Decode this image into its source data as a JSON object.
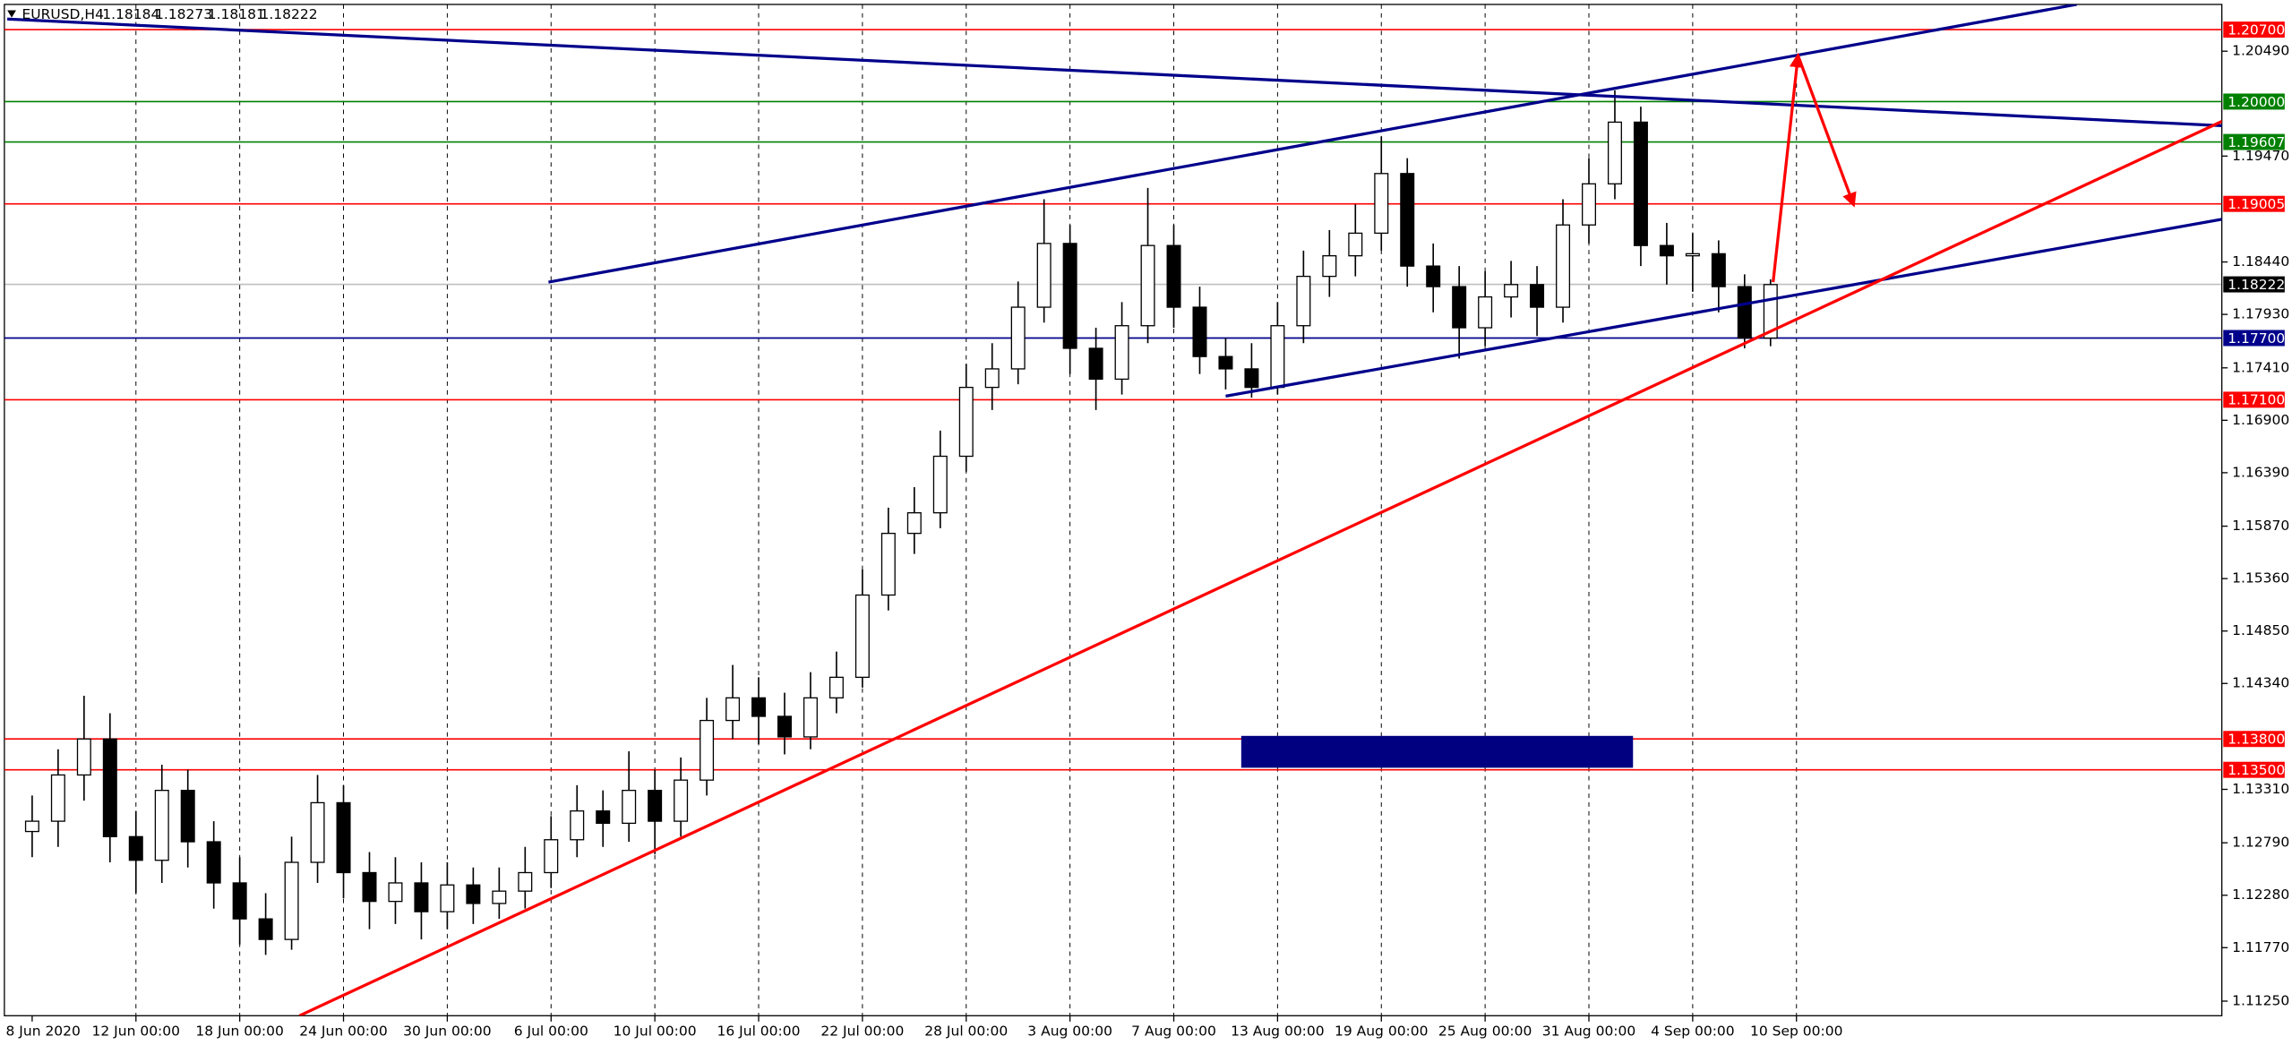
{
  "chart_data": {
    "type": "candlestick",
    "title": "EURUSD,H4",
    "quote": [
      1.18184,
      1.18273,
      1.18181,
      1.18222
    ],
    "open": [
      1.129,
      1.13,
      1.1345,
      1.138,
      1.1285,
      1.1262,
      1.133,
      1.128,
      1.124,
      1.1205,
      1.1185,
      1.126,
      1.1318,
      1.125,
      1.1222,
      1.124,
      1.1212,
      1.1238,
      1.122,
      1.1232,
      1.125,
      1.1282,
      1.131,
      1.1298,
      1.133,
      1.13,
      1.134,
      1.1398,
      1.142,
      1.1402,
      1.1382,
      1.142,
      1.144,
      1.152,
      1.158,
      1.16,
      1.1655,
      1.1722,
      1.174,
      1.18,
      1.1862,
      1.176,
      1.173,
      1.1782,
      1.186,
      1.18,
      1.1752,
      1.174,
      1.1722,
      1.1782,
      1.183,
      1.185,
      1.1872,
      1.193,
      1.184,
      1.182,
      1.178,
      1.181,
      1.1822,
      1.18,
      1.188,
      1.192,
      1.198,
      1.186,
      1.185,
      1.1852,
      1.182,
      1.177
    ],
    "high": [
      1.1325,
      1.137,
      1.1422,
      1.1405,
      1.131,
      1.1355,
      1.135,
      1.13,
      1.1265,
      1.123,
      1.1285,
      1.1345,
      1.1335,
      1.127,
      1.1265,
      1.126,
      1.126,
      1.1255,
      1.1255,
      1.1275,
      1.1305,
      1.1335,
      1.133,
      1.1368,
      1.135,
      1.1362,
      1.142,
      1.1452,
      1.144,
      1.1425,
      1.1445,
      1.1465,
      1.1545,
      1.1605,
      1.1625,
      1.168,
      1.1745,
      1.1765,
      1.1825,
      1.1905,
      1.188,
      1.178,
      1.1805,
      1.1916,
      1.188,
      1.182,
      1.177,
      1.1765,
      1.1805,
      1.1855,
      1.1875,
      1.19,
      1.1966,
      1.1945,
      1.1862,
      1.184,
      1.1835,
      1.1845,
      1.184,
      1.1905,
      1.1945,
      1.2011,
      1.1995,
      1.1882,
      1.1872,
      1.1865,
      1.1832,
      1.1827
    ],
    "low": [
      1.1265,
      1.1275,
      1.132,
      1.126,
      1.123,
      1.124,
      1.1255,
      1.1215,
      1.118,
      1.117,
      1.1175,
      1.124,
      1.1225,
      1.1195,
      1.12,
      1.1185,
      1.1195,
      1.12,
      1.1205,
      1.1215,
      1.1235,
      1.1265,
      1.1275,
      1.128,
      1.1268,
      1.1285,
      1.1325,
      1.138,
      1.1375,
      1.1365,
      1.137,
      1.1405,
      1.143,
      1.1505,
      1.156,
      1.1585,
      1.164,
      1.17,
      1.1725,
      1.1785,
      1.1735,
      1.17,
      1.1715,
      1.1765,
      1.178,
      1.1735,
      1.172,
      1.1712,
      1.1715,
      1.1765,
      1.181,
      1.183,
      1.1855,
      1.182,
      1.1795,
      1.175,
      1.1762,
      1.179,
      1.1772,
      1.1785,
      1.1862,
      1.1905,
      1.184,
      1.1822,
      1.1815,
      1.1795,
      1.176,
      1.1762
    ],
    "close": [
      1.13,
      1.1345,
      1.138,
      1.1285,
      1.1262,
      1.133,
      1.128,
      1.124,
      1.1205,
      1.1185,
      1.126,
      1.1318,
      1.125,
      1.1222,
      1.124,
      1.1212,
      1.1238,
      1.122,
      1.1232,
      1.125,
      1.1282,
      1.131,
      1.1298,
      1.133,
      1.13,
      1.134,
      1.1398,
      1.142,
      1.1402,
      1.1382,
      1.142,
      1.144,
      1.152,
      1.158,
      1.16,
      1.1655,
      1.1722,
      1.174,
      1.18,
      1.1862,
      1.176,
      1.173,
      1.1782,
      1.186,
      1.18,
      1.1752,
      1.174,
      1.1722,
      1.1782,
      1.183,
      1.185,
      1.1872,
      1.193,
      1.184,
      1.182,
      1.178,
      1.181,
      1.1822,
      1.18,
      1.188,
      1.192,
      1.198,
      1.186,
      1.185,
      1.1852,
      1.182,
      1.177,
      1.1822
    ],
    "xticks": [
      {
        "value": 0,
        "label": "8 Jun 2020"
      },
      {
        "value": 4,
        "label": "12 Jun 00:00"
      },
      {
        "value": 8,
        "label": "18 Jun 00:00"
      },
      {
        "value": 12,
        "label": "24 Jun 00:00"
      },
      {
        "value": 16,
        "label": "30 Jun 00:00"
      },
      {
        "value": 20,
        "label": "6 Jul 00:00"
      },
      {
        "value": 24,
        "label": "10 Jul 00:00"
      },
      {
        "value": 28,
        "label": "16 Jul 00:00"
      },
      {
        "value": 32,
        "label": "22 Jul 00:00"
      },
      {
        "value": 36,
        "label": "28 Jul 00:00"
      },
      {
        "value": 40,
        "label": "3 Aug 00:00"
      },
      {
        "value": 44,
        "label": "7 Aug 00:00"
      },
      {
        "value": 48,
        "label": "13 Aug 00:00"
      },
      {
        "value": 52,
        "label": "19 Aug 00:00"
      },
      {
        "value": 56,
        "label": "25 Aug 00:00"
      },
      {
        "value": 60,
        "label": "31 Aug 00:00"
      },
      {
        "value": 64,
        "label": "4 Sep 00:00"
      },
      {
        "value": 68,
        "label": "10 Sep 00:00"
      }
    ],
    "ylim": [
      1.11108,
      1.20945
    ],
    "yticks": [
      {
        "value": 1.2049,
        "label": "1.20490"
      },
      {
        "value": 1.1947,
        "label": "1.19470"
      },
      {
        "value": 1.1844,
        "label": "1.18440"
      },
      {
        "value": 1.1793,
        "label": "1.17930"
      },
      {
        "value": 1.1741,
        "label": "1.17410"
      },
      {
        "value": 1.169,
        "label": "1.16900"
      },
      {
        "value": 1.1639,
        "label": "1.16390"
      },
      {
        "value": 1.1587,
        "label": "1.15870"
      },
      {
        "value": 1.1536,
        "label": "1.15360"
      },
      {
        "value": 1.1485,
        "label": "1.14850"
      },
      {
        "value": 1.1434,
        "label": "1.14340"
      },
      {
        "value": 1.1331,
        "label": "1.13310"
      },
      {
        "value": 1.1279,
        "label": "1.12790"
      },
      {
        "value": 1.1228,
        "label": "1.12280"
      },
      {
        "value": 1.1177,
        "label": "1.11770"
      },
      {
        "value": 1.1125,
        "label": "1.11250"
      }
    ],
    "grid": true,
    "levels": [
      {
        "value": 1.207,
        "label": "1.20700",
        "color": "#ff0000"
      },
      {
        "value": 1.2,
        "label": "1.20000",
        "color": "#008000"
      },
      {
        "value": 1.19607,
        "label": "1.19607",
        "color": "#008000"
      },
      {
        "value": 1.19005,
        "label": "1.19005",
        "color": "#ff0000"
      },
      {
        "value": 1.18222,
        "label": "1.18222",
        "color": "#000000"
      },
      {
        "value": 1.177,
        "label": "1.17700",
        "color": "#00008b"
      },
      {
        "value": 1.171,
        "label": "1.17100",
        "color": "#ff0000"
      },
      {
        "value": 1.138,
        "label": "1.13800",
        "color": "#ff0000"
      },
      {
        "value": 1.135,
        "label": "1.13500",
        "color": "#ff0000"
      }
    ],
    "trendlines": [
      {
        "color": "#00008b",
        "points": [
          [
            -0.96,
            1.20803
          ],
          [
            84.4,
            1.19765
          ]
        ]
      },
      {
        "color": "#00008b",
        "points": [
          [
            19.9,
            1.18244
          ],
          [
            78.8,
            1.20945
          ]
        ]
      },
      {
        "color": "#00008b",
        "points": [
          [
            46.0,
            1.17135
          ],
          [
            84.4,
            1.18855
          ]
        ]
      },
      {
        "color": "#ff0000",
        "points": [
          [
            10.3,
            1.11108
          ],
          [
            84.4,
            1.19808
          ]
        ]
      }
    ],
    "arrows": [
      {
        "color": "#ff0000",
        "points": [
          [
            67.1,
            1.18244
          ],
          [
            68.06,
            1.20447
          ]
        ]
      },
      {
        "color": "#ff0000",
        "points": [
          [
            68.06,
            1.20447
          ],
          [
            70.2,
            1.18997
          ]
        ]
      }
    ],
    "zones": [
      {
        "color": "#000080",
        "x": [
          46.6,
          61.7
        ],
        "y": [
          1.1352,
          1.1383
        ]
      }
    ]
  }
}
